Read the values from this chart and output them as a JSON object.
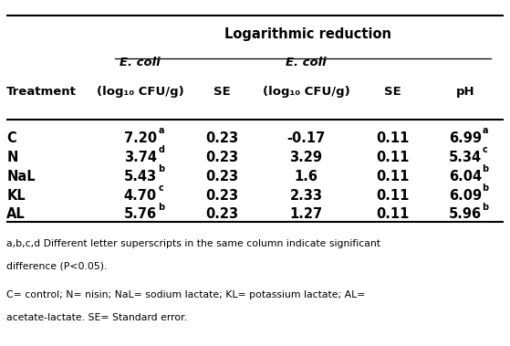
{
  "title": "Logarithmic reduction",
  "rows": [
    {
      "treatment": "C",
      "ecoli1": "7.20",
      "sup1": "a",
      "se1": "0.23",
      "ecoli2": "-0.17",
      "se2": "0.11",
      "ph": "6.99",
      "phsup": "a"
    },
    {
      "treatment": "N",
      "ecoli1": "3.74",
      "sup1": "d",
      "se1": "0.23",
      "ecoli2": "3.29",
      "se2": "0.11",
      "ph": "5.34",
      "phsup": "c"
    },
    {
      "treatment": "NaL",
      "ecoli1": "5.43",
      "sup1": "b",
      "se1": "0.23",
      "ecoli2": "1.6",
      "se2": "0.11",
      "ph": "6.04",
      "phsup": "b"
    },
    {
      "treatment": "KL",
      "ecoli1": "4.70",
      "sup1": "c",
      "se1": "0.23",
      "ecoli2": "2.33",
      "se2": "0.11",
      "ph": "6.09",
      "phsup": "b"
    },
    {
      "treatment": "AL",
      "ecoli1": "5.76",
      "sup1": "b",
      "se1": "0.23",
      "ecoli2": "1.27",
      "se2": "0.11",
      "ph": "5.96",
      "phsup": "b"
    }
  ],
  "footnote1": "a,b,c,d Different letter superscripts in the same column indicate significant",
  "footnote2": "difference (P<0.05).",
  "footnote3": "C= control; N= nisin; NaL= sodium lactate; KL= potassium lactate; AL=",
  "footnote4": "acetate-lactate. SE= Standard error.",
  "bg_color": "#ffffff",
  "text_color": "#000000"
}
